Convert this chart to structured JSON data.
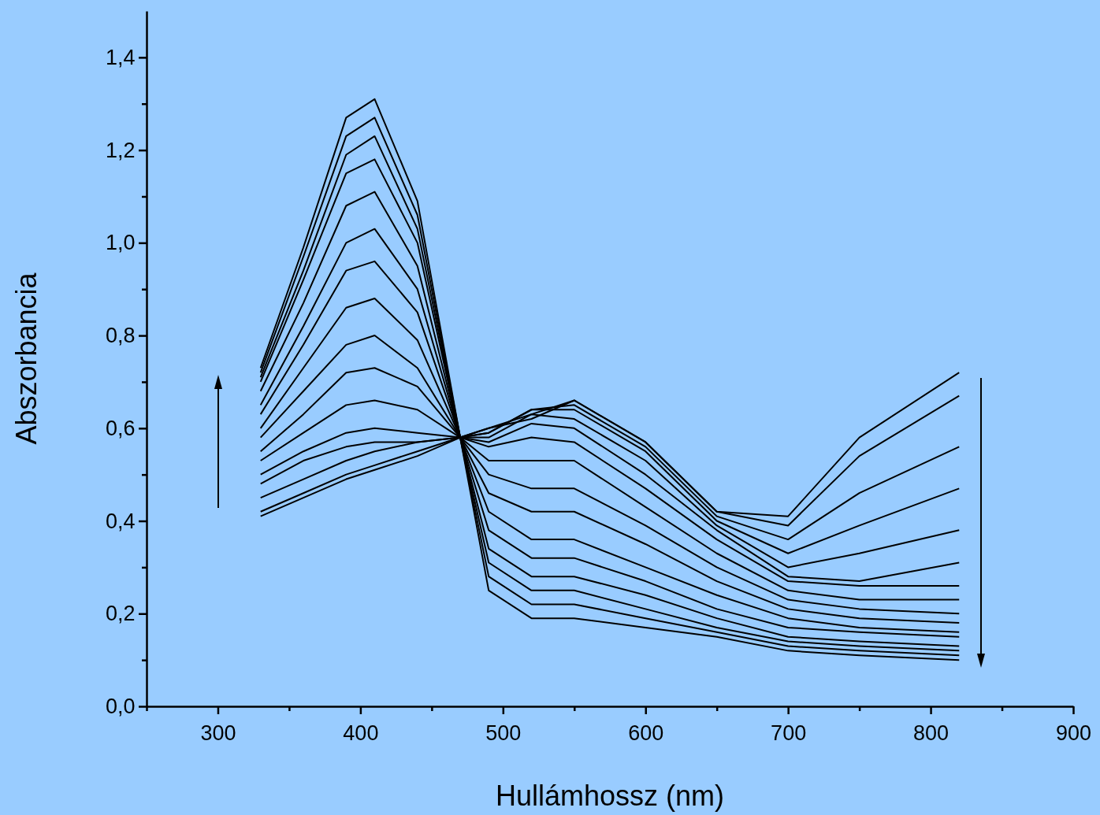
{
  "chart_data": {
    "type": "line",
    "xlabel": "Hullámhossz (nm)",
    "ylabel": "Abszorbancia",
    "x": [
      330,
      360,
      390,
      410,
      440,
      470,
      490,
      520,
      550,
      600,
      650,
      700,
      750,
      820
    ],
    "series": [
      {
        "color": "#000000",
        "values": [
          0.73,
          0.99,
          1.27,
          1.31,
          1.09,
          0.58,
          0.25,
          0.19,
          0.19,
          0.17,
          0.15,
          0.12,
          0.11,
          0.1
        ]
      },
      {
        "color": "#000000",
        "values": [
          0.72,
          0.97,
          1.23,
          1.27,
          1.06,
          0.58,
          0.28,
          0.22,
          0.22,
          0.19,
          0.16,
          0.13,
          0.12,
          0.11
        ]
      },
      {
        "color": "#000000",
        "values": [
          0.71,
          0.94,
          1.19,
          1.23,
          1.03,
          0.58,
          0.31,
          0.25,
          0.25,
          0.21,
          0.17,
          0.14,
          0.13,
          0.12
        ]
      },
      {
        "color": "#000000",
        "values": [
          0.7,
          0.92,
          1.15,
          1.18,
          1.0,
          0.58,
          0.34,
          0.28,
          0.28,
          0.24,
          0.19,
          0.15,
          0.14,
          0.13
        ]
      },
      {
        "color": "#000000",
        "values": [
          0.68,
          0.87,
          1.08,
          1.11,
          0.95,
          0.58,
          0.38,
          0.32,
          0.32,
          0.27,
          0.21,
          0.17,
          0.16,
          0.15
        ]
      },
      {
        "color": "#000000",
        "values": [
          0.65,
          0.82,
          1.0,
          1.03,
          0.9,
          0.58,
          0.42,
          0.36,
          0.36,
          0.3,
          0.24,
          0.19,
          0.17,
          0.16
        ]
      },
      {
        "color": "#000000",
        "values": [
          0.63,
          0.78,
          0.94,
          0.96,
          0.85,
          0.58,
          0.46,
          0.42,
          0.42,
          0.35,
          0.27,
          0.21,
          0.19,
          0.18
        ]
      },
      {
        "color": "#000000",
        "values": [
          0.6,
          0.73,
          0.86,
          0.88,
          0.79,
          0.58,
          0.5,
          0.47,
          0.47,
          0.39,
          0.3,
          0.23,
          0.21,
          0.2
        ]
      },
      {
        "color": "#000000",
        "values": [
          0.58,
          0.68,
          0.78,
          0.8,
          0.73,
          0.58,
          0.53,
          0.53,
          0.53,
          0.43,
          0.33,
          0.25,
          0.23,
          0.23
        ]
      },
      {
        "color": "#000000",
        "values": [
          0.55,
          0.63,
          0.72,
          0.73,
          0.69,
          0.58,
          0.56,
          0.58,
          0.57,
          0.47,
          0.36,
          0.27,
          0.26,
          0.26
        ]
      },
      {
        "color": "#000000",
        "values": [
          0.53,
          0.59,
          0.65,
          0.66,
          0.64,
          0.58,
          0.57,
          0.61,
          0.6,
          0.5,
          0.38,
          0.28,
          0.27,
          0.31
        ]
      },
      {
        "color": "#000000",
        "values": [
          0.5,
          0.55,
          0.59,
          0.6,
          0.59,
          0.58,
          0.58,
          0.63,
          0.62,
          0.53,
          0.39,
          0.3,
          0.33,
          0.38
        ]
      },
      {
        "color": "#000000",
        "values": [
          0.48,
          0.53,
          0.56,
          0.57,
          0.57,
          0.58,
          0.59,
          0.64,
          0.64,
          0.55,
          0.4,
          0.33,
          0.39,
          0.47
        ]
      },
      {
        "color": "#000000",
        "values": [
          0.45,
          0.49,
          0.53,
          0.55,
          0.57,
          0.58,
          0.59,
          0.64,
          0.65,
          0.56,
          0.41,
          0.36,
          0.46,
          0.56
        ]
      },
      {
        "color": "#000000",
        "values": [
          0.42,
          0.46,
          0.5,
          0.52,
          0.55,
          0.58,
          0.6,
          0.63,
          0.66,
          0.57,
          0.42,
          0.39,
          0.54,
          0.67
        ]
      },
      {
        "color": "#000000",
        "values": [
          0.41,
          0.45,
          0.49,
          0.51,
          0.54,
          0.58,
          0.6,
          0.62,
          0.66,
          0.57,
          0.42,
          0.41,
          0.58,
          0.72
        ]
      }
    ],
    "xlim": [
      250,
      900
    ],
    "ylim": [
      0,
      1.5
    ],
    "xticks": [
      {
        "value": 250,
        "label": null
      },
      300,
      {
        "value": 350,
        "label": null
      },
      400,
      {
        "value": 450,
        "label": null
      },
      500,
      {
        "value": 550,
        "label": null
      },
      600,
      {
        "value": 650,
        "label": null
      },
      700,
      {
        "value": 750,
        "label": null
      },
      800,
      {
        "value": 850,
        "label": null
      },
      900
    ],
    "yticks": [
      {
        "value": 0,
        "label": "0,0"
      },
      {
        "value": 0.1,
        "label": null
      },
      {
        "value": 0.2,
        "label": "0,2"
      },
      {
        "value": 0.3,
        "label": null
      },
      {
        "value": 0.4,
        "label": "0,4"
      },
      {
        "value": 0.5,
        "label": null
      },
      {
        "value": 0.6,
        "label": "0,6"
      },
      {
        "value": 0.7,
        "label": null
      },
      {
        "value": 0.8,
        "label": "0,8"
      },
      {
        "value": 0.9,
        "label": null
      },
      {
        "value": 1.0,
        "label": "1,0"
      },
      {
        "value": 1.1,
        "label": null
      },
      {
        "value": 1.2,
        "label": "1,2"
      },
      {
        "value": 1.3,
        "label": null
      },
      {
        "value": 1.4,
        "label": "1,4"
      }
    ],
    "line_style": "solid",
    "marker": "none"
  }
}
